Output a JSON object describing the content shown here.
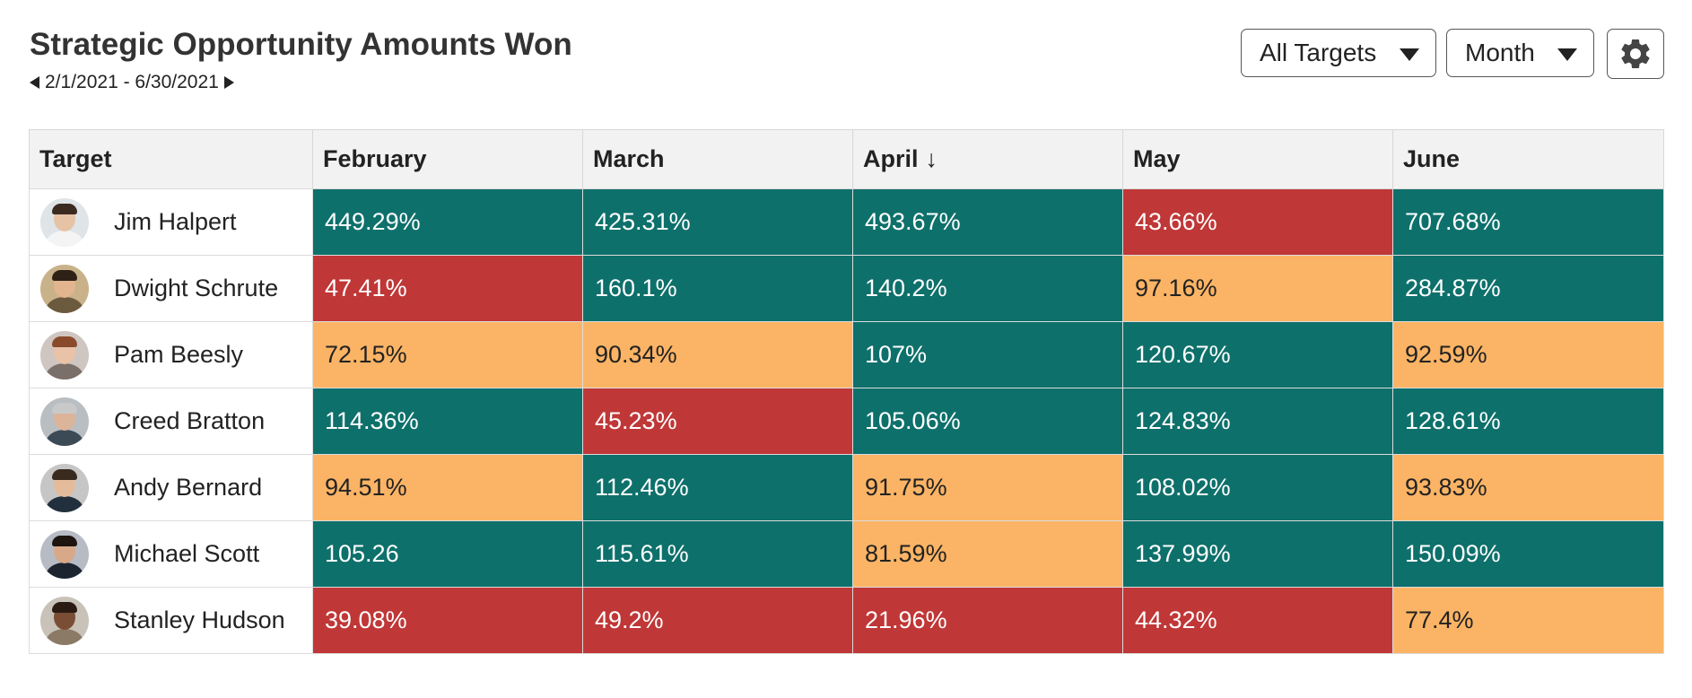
{
  "header": {
    "title": "Strategic Opportunity Amounts Won",
    "date_range": "2/1/2021 - 6/30/2021"
  },
  "controls": {
    "targets_dropdown": "All Targets",
    "period_dropdown": "Month",
    "settings_icon": "gear-icon"
  },
  "table": {
    "columns": [
      "Target",
      "February",
      "March",
      "April",
      "May",
      "June"
    ],
    "sort_column": "April",
    "sort_indicator": "↓",
    "colors": {
      "high": "#0e706b",
      "low": "#c03737",
      "mid": "#fbb465"
    },
    "rows": [
      {
        "name": "Jim Halpert",
        "cells": [
          {
            "value": "449.29%",
            "status": "high"
          },
          {
            "value": "425.31%",
            "status": "high"
          },
          {
            "value": "493.67%",
            "status": "high"
          },
          {
            "value": "43.66%",
            "status": "low"
          },
          {
            "value": "707.68%",
            "status": "high"
          }
        ]
      },
      {
        "name": "Dwight Schrute",
        "cells": [
          {
            "value": "47.41%",
            "status": "low"
          },
          {
            "value": "160.1%",
            "status": "high"
          },
          {
            "value": "140.2%",
            "status": "high"
          },
          {
            "value": "97.16%",
            "status": "mid"
          },
          {
            "value": "284.87%",
            "status": "high"
          }
        ]
      },
      {
        "name": "Pam Beesly",
        "cells": [
          {
            "value": "72.15%",
            "status": "mid"
          },
          {
            "value": "90.34%",
            "status": "mid"
          },
          {
            "value": "107%",
            "status": "high"
          },
          {
            "value": "120.67%",
            "status": "high"
          },
          {
            "value": "92.59%",
            "status": "mid"
          }
        ]
      },
      {
        "name": "Creed Bratton",
        "cells": [
          {
            "value": "114.36%",
            "status": "high"
          },
          {
            "value": "45.23%",
            "status": "low"
          },
          {
            "value": "105.06%",
            "status": "high"
          },
          {
            "value": "124.83%",
            "status": "high"
          },
          {
            "value": "128.61%",
            "status": "high"
          }
        ]
      },
      {
        "name": "Andy Bernard",
        "cells": [
          {
            "value": "94.51%",
            "status": "mid"
          },
          {
            "value": "112.46%",
            "status": "high"
          },
          {
            "value": "91.75%",
            "status": "mid"
          },
          {
            "value": "108.02%",
            "status": "high"
          },
          {
            "value": "93.83%",
            "status": "mid"
          }
        ]
      },
      {
        "name": "Michael Scott",
        "cells": [
          {
            "value": "105.26",
            "status": "high"
          },
          {
            "value": "115.61%",
            "status": "high"
          },
          {
            "value": "81.59%",
            "status": "mid"
          },
          {
            "value": "137.99%",
            "status": "high"
          },
          {
            "value": "150.09%",
            "status": "high"
          }
        ]
      },
      {
        "name": "Stanley Hudson",
        "cells": [
          {
            "value": "39.08%",
            "status": "low"
          },
          {
            "value": "49.2%",
            "status": "low"
          },
          {
            "value": "21.96%",
            "status": "low"
          },
          {
            "value": "44.32%",
            "status": "low"
          },
          {
            "value": "77.4%",
            "status": "mid"
          }
        ]
      }
    ]
  }
}
